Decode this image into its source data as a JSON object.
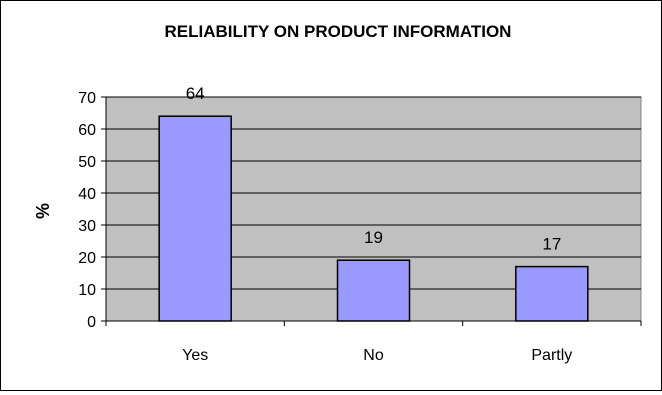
{
  "chart_data": {
    "type": "bar",
    "title": "RELIABILITY ON PRODUCT INFORMATION",
    "xlabel": "",
    "ylabel": "%",
    "categories": [
      "Yes",
      "No",
      "Partly"
    ],
    "values": [
      64,
      19,
      17
    ],
    "data_labels": [
      "64",
      "19",
      "17"
    ],
    "ylim": [
      0,
      70
    ],
    "yticks": [
      0,
      10,
      20,
      30,
      40,
      50,
      60,
      70
    ],
    "grid": true,
    "legend": "none",
    "colors": {
      "bar_fill": "#9999ff",
      "plot_background": "#c0c0c0",
      "gridline": "#000000",
      "bar_stroke": "#000000"
    }
  }
}
